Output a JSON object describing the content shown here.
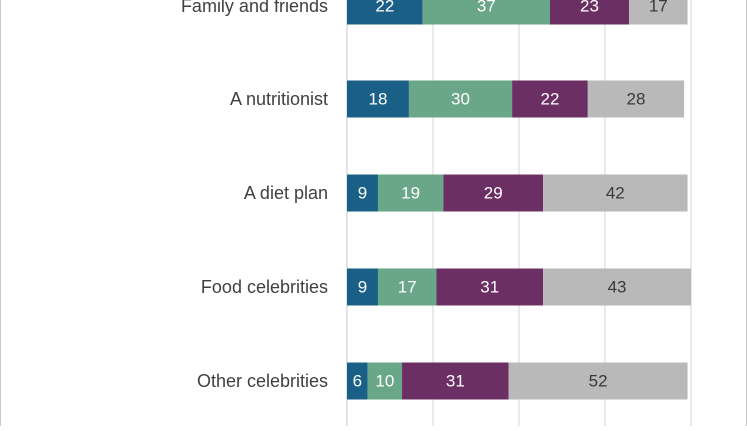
{
  "chart_data": {
    "type": "bar",
    "orientation": "horizontal",
    "stacked": true,
    "title": "",
    "xlabel": "",
    "ylabel": "",
    "categories": [
      "Family and friends",
      "A nutritionist",
      "A diet plan",
      "Food celebrities",
      "Other celebrities"
    ],
    "series": [
      {
        "color": "#1a5f85",
        "values": [
          22,
          18,
          9,
          9,
          6
        ]
      },
      {
        "color": "#6aa688",
        "values": [
          37,
          30,
          19,
          17,
          10
        ]
      },
      {
        "color": "#6b2f63",
        "values": [
          23,
          22,
          29,
          31,
          31
        ]
      },
      {
        "color": "#b9b9b9",
        "values": [
          17,
          28,
          42,
          43,
          52
        ]
      }
    ],
    "xlim": [
      0,
      100
    ],
    "gridlines": true,
    "legend": "none"
  }
}
